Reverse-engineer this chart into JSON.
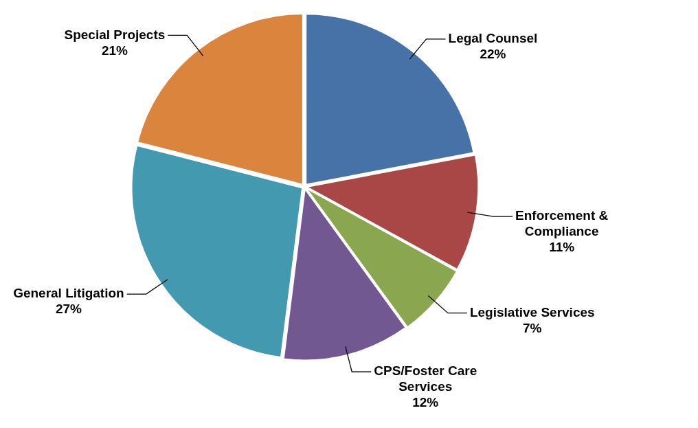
{
  "chart_data": {
    "type": "pie",
    "categories": [
      "Legal Counsel",
      "Enforcement & Compliance",
      "Legislative Services",
      "CPS/Foster Care Services",
      "General Litigation",
      "Special Projects"
    ],
    "values": [
      22,
      11,
      7,
      12,
      27,
      21
    ],
    "value_labels": [
      "22%",
      "11%",
      "7%",
      "12%",
      "27%",
      "21%"
    ],
    "colors": [
      "#4672a8",
      "#a84745",
      "#8aa64e",
      "#715890",
      "#4299b0",
      "#db843d"
    ],
    "legend": false
  }
}
